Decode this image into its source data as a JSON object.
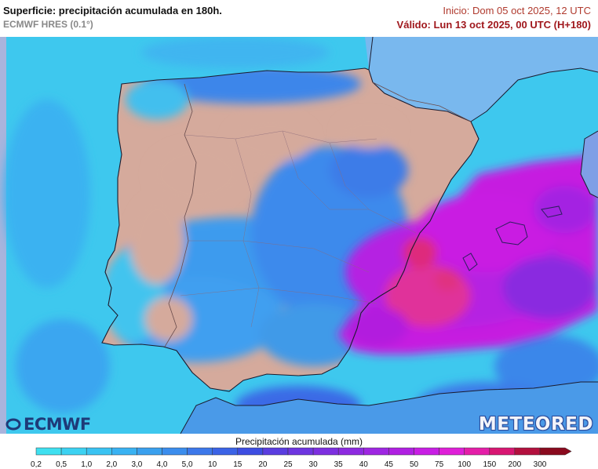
{
  "header": {
    "title": "Superficie: precipitación acumulada en 180h.",
    "model": "ECMWF HRES (0.1°)",
    "init": "Inicio: Dom 05 oct 2025, 12 UTC",
    "valid": "Válido: Lun 13 oct 2025, 00 UTC (H+180)"
  },
  "logos": {
    "left": "ECMWF",
    "right": "METEORED"
  },
  "legend": {
    "title": "Precipitación acumulada (mm)",
    "ticks": [
      "0,2",
      "0,5",
      "1,0",
      "2,0",
      "3,0",
      "4,0",
      "5,0",
      "10",
      "15",
      "20",
      "25",
      "30",
      "35",
      "40",
      "45",
      "50",
      "75",
      "100",
      "150",
      "200",
      "300"
    ],
    "colors": [
      "#3fe0f0",
      "#3cd2f2",
      "#3ac3f2",
      "#39b2f2",
      "#3aa0ee",
      "#3b8ded",
      "#3c78ea",
      "#3b63e6",
      "#3d4de2",
      "#5a3de0",
      "#6e35e0",
      "#7d2fe0",
      "#8d2ae0",
      "#9e26e2",
      "#b020e2",
      "#c81ee4",
      "#df1fd8",
      "#e41ea8",
      "#d81672",
      "#b3103e",
      "#8a0a1e"
    ]
  },
  "colors": {
    "sea": "#3ec8ee",
    "land_dry": "#d5aa9c",
    "land_wet": "#3f94e8",
    "outside": "#a9b4dc",
    "heavy": "#c61fe0",
    "extreme": "#e0329a"
  }
}
